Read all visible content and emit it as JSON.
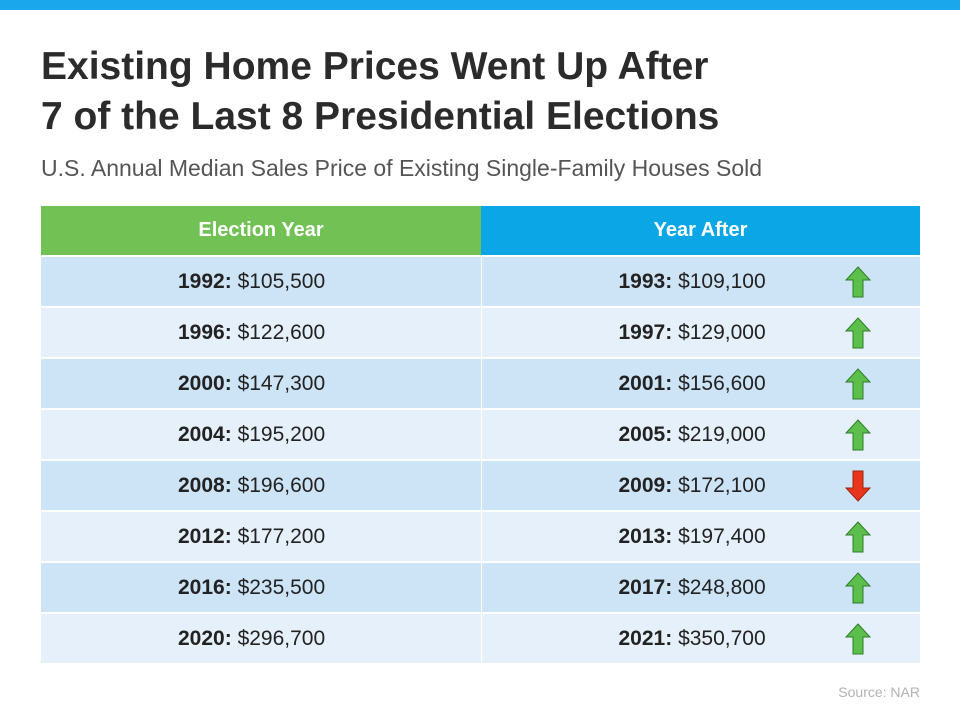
{
  "title": {
    "line1": "Existing Home Prices Went Up After",
    "line2": "7 of the Last 8 Presidential Elections"
  },
  "subtitle": "U.S. Annual Median Sales Price of Existing Single-Family Houses Sold",
  "source": "Source: NAR",
  "colors": {
    "accent_bar": "#1aa7ec",
    "header_left": "#72c155",
    "header_right": "#0aa6e6",
    "row_dark": "#cde3f6",
    "row_light": "#e5f0fa",
    "arrow_up": "#5cbf4c",
    "arrow_down": "#e8361c"
  },
  "chart_data": {
    "type": "table",
    "columns": [
      "Election Year",
      "Year After"
    ],
    "rows": [
      {
        "election_year": "1992:",
        "election_price": "$105,500",
        "after_year": "1993:",
        "after_price": "$109,100",
        "trend": "up",
        "trend_icon": "arrow-up-icon"
      },
      {
        "election_year": "1996:",
        "election_price": "$122,600",
        "after_year": "1997:",
        "after_price": "$129,000",
        "trend": "up",
        "trend_icon": "arrow-up-icon"
      },
      {
        "election_year": "2000:",
        "election_price": "$147,300",
        "after_year": "2001:",
        "after_price": "$156,600",
        "trend": "up",
        "trend_icon": "arrow-up-icon"
      },
      {
        "election_year": "2004:",
        "election_price": "$195,200",
        "after_year": "2005:",
        "after_price": "$219,000",
        "trend": "up",
        "trend_icon": "arrow-up-icon"
      },
      {
        "election_year": "2008:",
        "election_price": "$196,600",
        "after_year": "2009:",
        "after_price": "$172,100",
        "trend": "down",
        "trend_icon": "arrow-down-icon"
      },
      {
        "election_year": "2012:",
        "election_price": "$177,200",
        "after_year": "2013:",
        "after_price": "$197,400",
        "trend": "up",
        "trend_icon": "arrow-up-icon"
      },
      {
        "election_year": "2016:",
        "election_price": "$235,500",
        "after_year": "2017:",
        "after_price": "$248,800",
        "trend": "up",
        "trend_icon": "arrow-up-icon"
      },
      {
        "election_year": "2020:",
        "election_price": "$296,700",
        "after_year": "2021:",
        "after_price": "$350,700",
        "trend": "up",
        "trend_icon": "arrow-up-icon"
      }
    ]
  }
}
